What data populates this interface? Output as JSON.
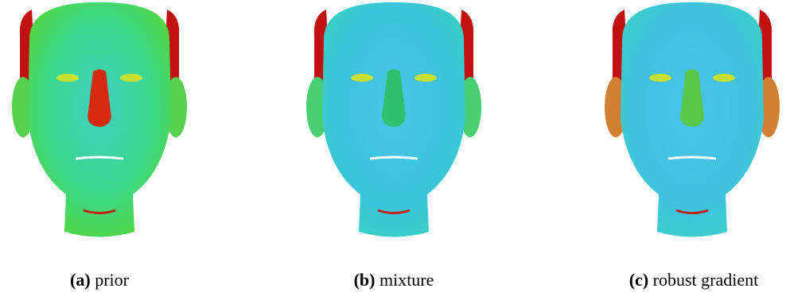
{
  "figure": {
    "subfigures": [
      {
        "label": "(a)",
        "caption": "prior"
      },
      {
        "label": "(b)",
        "caption": "mixture"
      },
      {
        "label": "(c)",
        "caption": "robust gradient"
      }
    ]
  }
}
